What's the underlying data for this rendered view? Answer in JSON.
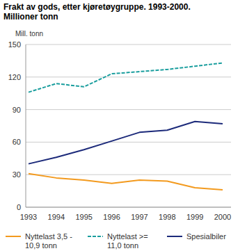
{
  "chart_data": {
    "type": "line",
    "title": "Frakt av gods, etter kjøretøygruppe. 1993-2000.",
    "subtitle": "Millioner tonn",
    "y_label": "Mill. tonn",
    "categories": [
      "1993",
      "1994",
      "1995",
      "1996",
      "1997",
      "1998",
      "1999",
      "2000"
    ],
    "series": [
      {
        "name": "Nyttelast 3,5 - 10,9 tonn",
        "color": "#f39a1e",
        "line_style": "solid",
        "values": [
          31,
          27,
          25,
          22,
          25,
          24,
          18,
          16
        ]
      },
      {
        "name": "Nyttelast >= 11,0 tonn",
        "color": "#1a9e9e",
        "line_style": "dashed",
        "values": [
          106,
          114,
          111,
          123,
          125,
          127,
          130,
          133
        ]
      },
      {
        "name": "Spesialbiler",
        "color": "#1c2a7a",
        "line_style": "solid",
        "values": [
          40,
          46,
          53,
          61,
          69,
          71,
          79,
          77
        ]
      }
    ],
    "ylim": [
      0,
      150
    ],
    "yticks": [
      0,
      30,
      60,
      90,
      120,
      150
    ],
    "grid": true,
    "legend": "bottom"
  }
}
